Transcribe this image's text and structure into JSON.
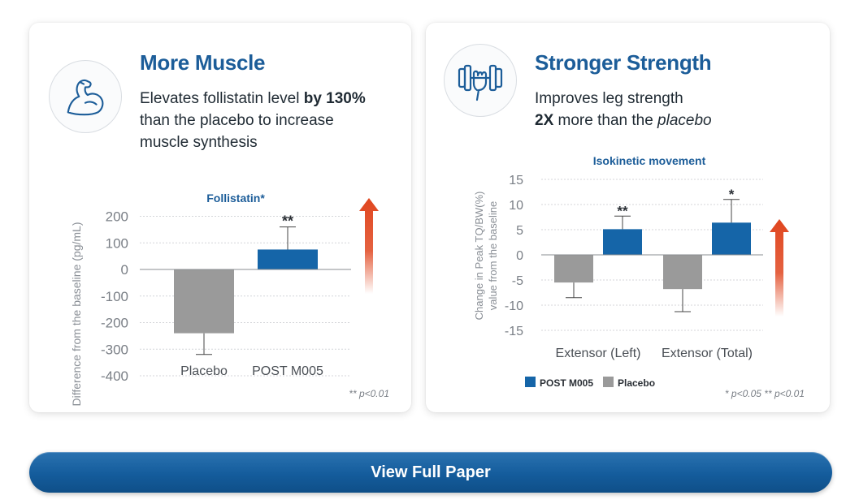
{
  "left_card": {
    "icon": "flexed-arm-icon",
    "title": "More Muscle",
    "desc_prefix": "Elevates follistatin level ",
    "desc_bold": "by 130%",
    "desc_suffix": " than the placebo to increase muscle synthesis",
    "footnote": "** p<0.01"
  },
  "right_card": {
    "icon": "dumbbell-hand-icon",
    "title": "Stronger Strength",
    "desc_line1": "Improves leg strength",
    "desc_bold": "2X",
    "desc_mid": " more than the ",
    "desc_italic": "placebo",
    "footnote": "* p<0.05  ** p<0.01",
    "legend": [
      {
        "label": "POST M005",
        "color": "#1565a8"
      },
      {
        "label": "Placebo",
        "color": "#9a9a9a"
      }
    ]
  },
  "colors": {
    "post": "#1565a8",
    "placebo": "#9a9a9a",
    "title": "#1c5d99",
    "arrow": "#e0461f"
  },
  "cta": {
    "label": "View Full Paper"
  },
  "chart_data": [
    {
      "type": "bar",
      "title": "Follistatin*",
      "xlabel": "",
      "ylabel": "Difference from the baseline (pg/mL)",
      "categories": [
        "Placebo",
        "POST M005"
      ],
      "values": [
        -240,
        75
      ],
      "errors": [
        80,
        85
      ],
      "bar_colors": [
        "placebo",
        "post"
      ],
      "significance": [
        "",
        "**"
      ],
      "yticks": [
        200,
        100,
        0,
        -100,
        -200,
        -300,
        -400
      ],
      "ylim": [
        -400,
        200
      ],
      "grid": true
    },
    {
      "type": "bar",
      "title": "Isokinetic movement",
      "xlabel": "",
      "ylabel": "Change in Peak TQ/BW(%) value from the baseline",
      "categories": [
        "Extensor (Left)",
        "Extensor (Total)"
      ],
      "series": [
        {
          "name": "Placebo",
          "values": [
            -5.5,
            -6.8
          ],
          "errors": [
            3,
            4.5
          ],
          "significance": [
            "",
            ""
          ]
        },
        {
          "name": "POST M005",
          "values": [
            5.1,
            6.4
          ],
          "errors": [
            2.6,
            4.6
          ],
          "significance": [
            "**",
            "*"
          ]
        }
      ],
      "yticks": [
        15,
        10,
        5,
        0,
        -5,
        -10,
        -15
      ],
      "ylim": [
        -15,
        15
      ],
      "grid": true,
      "legend": "bottom"
    }
  ]
}
